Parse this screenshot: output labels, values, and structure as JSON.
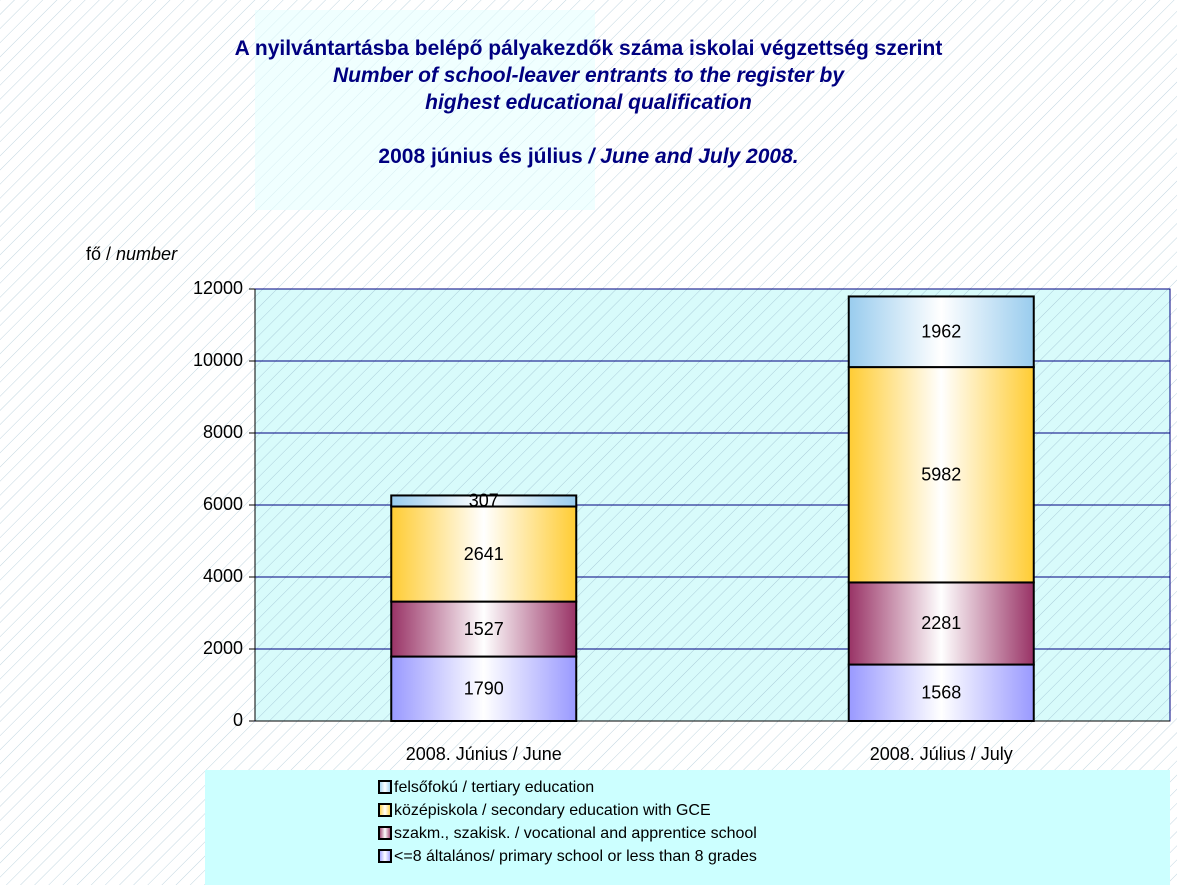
{
  "chart_data": {
    "type": "stacked_bar",
    "title": "A nyilvántartásba belépő pályakezdők száma iskolai végzettség szerint",
    "subtitle": "Number of school-leaver entrants to the register by highest educational qualification",
    "period_hu": "2008 június és július",
    "period_en": "/ June and July 2008.",
    "y_label": "fő /",
    "y_label_en": "number",
    "categories": [
      "2008. Június / June",
      "2008. Július / July"
    ],
    "series": [
      {
        "name": "<=8 általános/ primary school or less than 8 grades",
        "color": "#9999ff",
        "values": [
          1790,
          1568
        ]
      },
      {
        "name": "szakm., szakisk. / vocational and apprentice school",
        "color": "#993366",
        "values": [
          1527,
          2281
        ]
      },
      {
        "name": "középiskola / secondary education with GCE",
        "color": "#ffcc33",
        "values": [
          2641,
          5982
        ]
      },
      {
        "name": "felsőfokú / tertiary education",
        "color": "#99ccee",
        "values": [
          307,
          1962
        ]
      }
    ],
    "ylim": [
      0,
      12000
    ],
    "yticks": [
      0,
      2000,
      4000,
      6000,
      8000,
      10000,
      12000
    ],
    "grid": true
  }
}
